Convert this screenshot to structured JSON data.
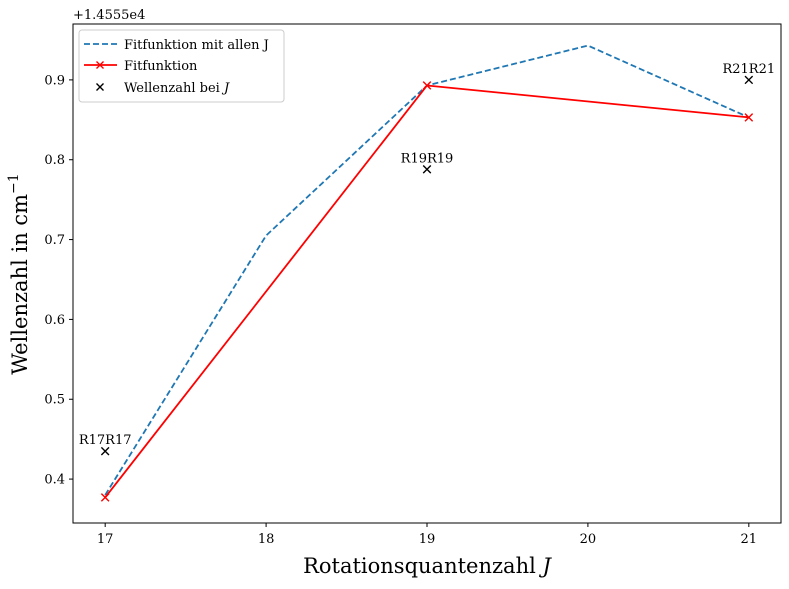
{
  "chart_data": {
    "type": "line",
    "x_label_text": "Rotationsquantenzahl",
    "x_label_symbol": "J",
    "y_label_text": "Wellenzahl in cm",
    "y_label_sup": "−1",
    "y_offset_label": "+1.4555e4",
    "xlim": [
      16.8,
      21.2
    ],
    "ylim": [
      0.345,
      0.97
    ],
    "x_ticks": [
      17,
      18,
      19,
      20,
      21
    ],
    "y_ticks": [
      0.4,
      0.5,
      0.6,
      0.7,
      0.8,
      0.9
    ],
    "grid": false,
    "legend_position": "top-left",
    "series": [
      {
        "name": "Fitfunktion mit allen J",
        "style": "dashed",
        "color": "#1f77b4",
        "x": [
          17,
          18,
          19,
          20,
          21
        ],
        "y": [
          0.38,
          0.705,
          0.893,
          0.943,
          0.853
        ]
      },
      {
        "name": "Fitfunktion",
        "style": "solid",
        "marker": "x",
        "color": "#ff0000",
        "x": [
          17,
          19,
          21
        ],
        "y": [
          0.377,
          0.893,
          0.853
        ]
      },
      {
        "name": "Wellenzahl bei ",
        "name_symbol": "J",
        "style": "none",
        "marker": "x",
        "color": "#000000",
        "x": [
          17,
          19,
          21
        ],
        "y": [
          0.435,
          0.788,
          0.9
        ]
      }
    ],
    "annotations": [
      {
        "text": "R17R17",
        "x": 17,
        "y": 0.435
      },
      {
        "text": "R19R19",
        "x": 19,
        "y": 0.788
      },
      {
        "text": "R21R21",
        "x": 21,
        "y": 0.9
      }
    ]
  }
}
